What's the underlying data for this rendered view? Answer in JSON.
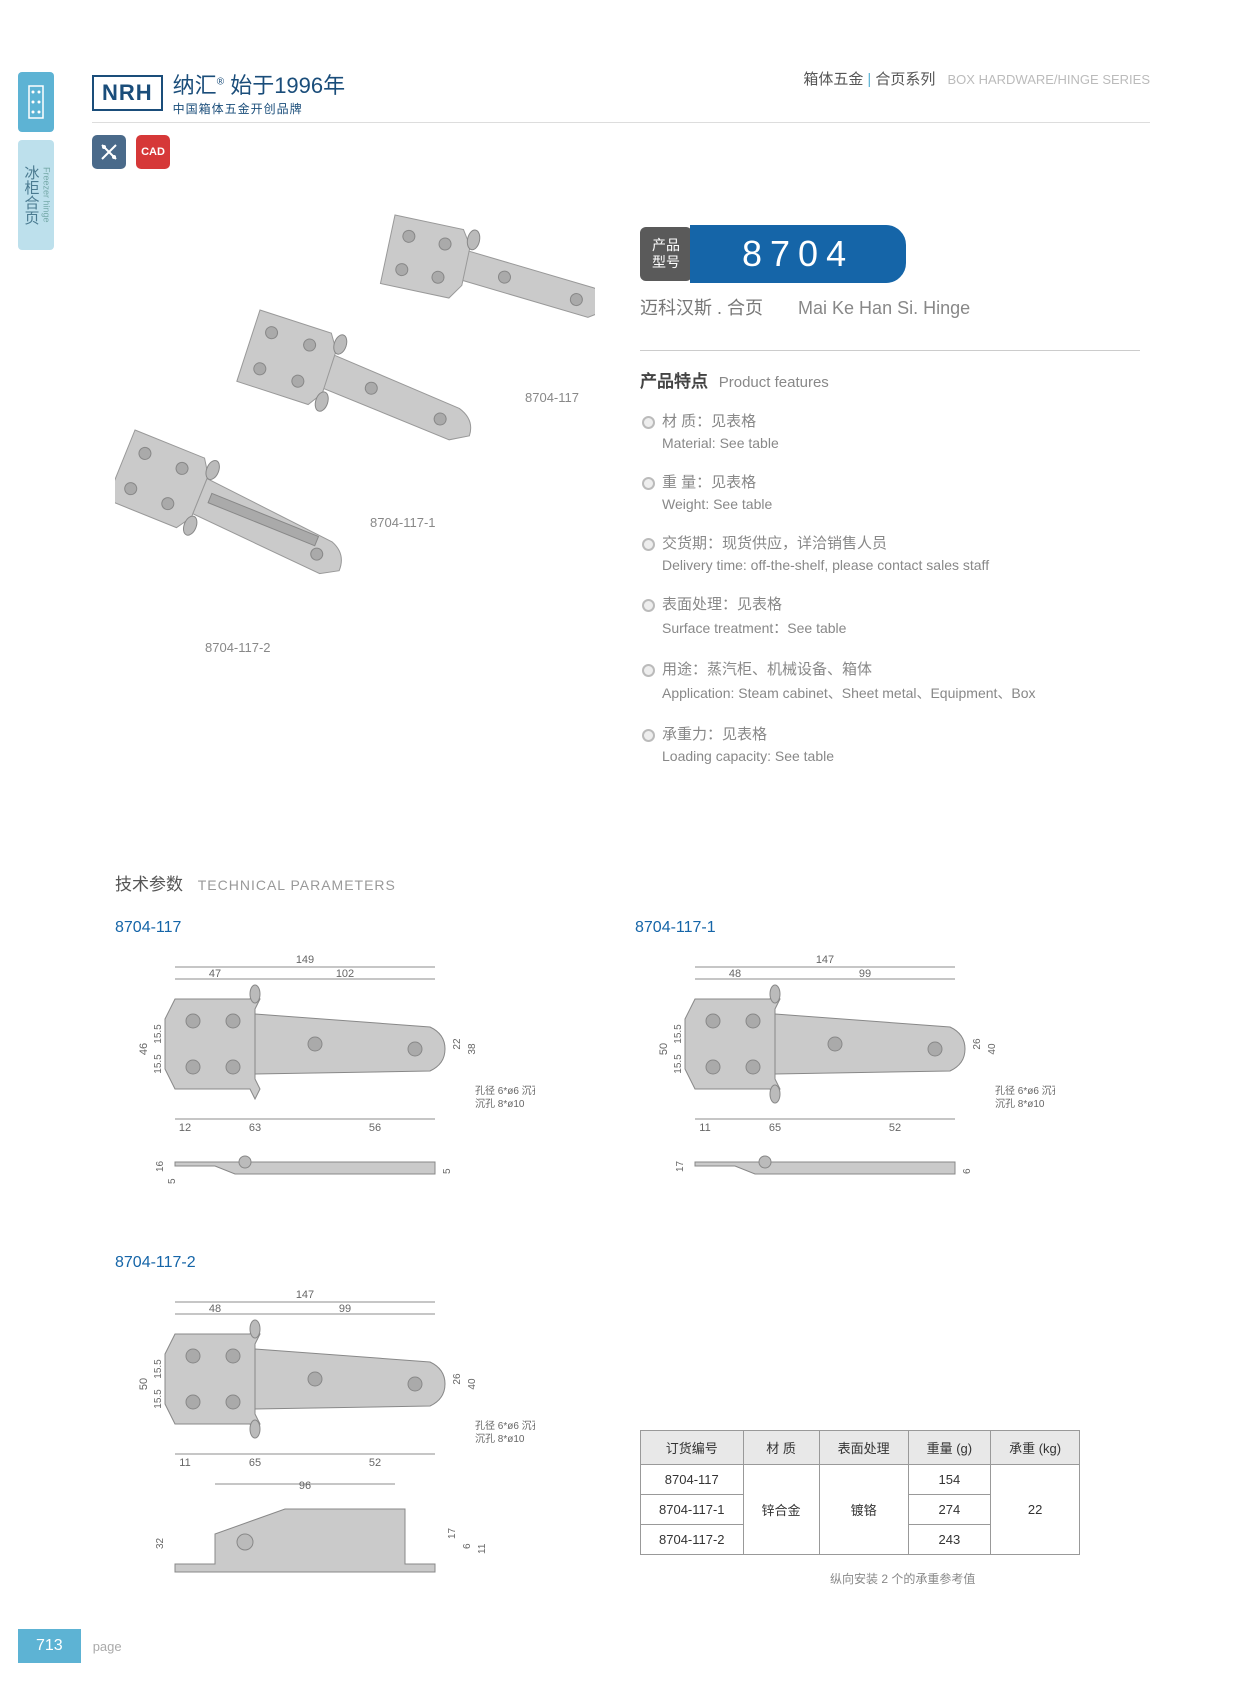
{
  "header": {
    "logo": "NRH",
    "brand_cn": "纳汇",
    "brand_suffix": "始于1996年",
    "brand_sub": "中国箱体五金开创品牌",
    "breadcrumb_cn1": "箱体五金",
    "breadcrumb_cn2": "合页系列",
    "breadcrumb_en": "BOX HARDWARE/HINGE SERIES"
  },
  "side": {
    "tab2_cn": "冰柜合页",
    "tab2_en": "Freezer hinge"
  },
  "icons": {
    "blue": "✕",
    "red": "CAD"
  },
  "product": {
    "model_label": "产品\n型号",
    "model_number": "8704",
    "name_cn": "迈科汉斯 . 合页",
    "name_en": "Mai Ke Han Si. Hinge",
    "labels": {
      "p1": "8704-117",
      "p2": "8704-117-1",
      "p3": "8704-117-2"
    }
  },
  "features": {
    "title_cn": "产品特点",
    "title_en": "Product features",
    "items": [
      {
        "cn": "材 质：见表格",
        "en": "Material: See table"
      },
      {
        "cn": "重 量：见表格",
        "en": "Weight: See table"
      },
      {
        "cn": "交货期：现货供应，详洽销售人员",
        "en": "Delivery time: off-the-shelf, please contact sales staff"
      },
      {
        "cn": "表面处理：见表格",
        "en": "Surface treatment：See table"
      },
      {
        "cn": "用途：蒸汽柜、机械设备、箱体",
        "en": "Application: Steam cabinet、Sheet metal、Equipment、Box"
      },
      {
        "cn": "承重力：见表格",
        "en": "Loading capacity: See table"
      }
    ]
  },
  "tech": {
    "title_cn": "技术参数",
    "title_en": "TECHNICAL PARAMETERS",
    "drawings": [
      {
        "label": "8704-117",
        "dims": {
          "total_w": "149",
          "w1": "47",
          "w2": "102",
          "h": "46",
          "h1": "15.5",
          "h2": "15.5",
          "d1": "12",
          "d2": "63",
          "d3": "56",
          "dh1": "22",
          "dh2": "38",
          "side_h": "16",
          "side_h1": "5",
          "side_h2": "5",
          "hole": "孔径 6*ø6\n沉孔 8*ø10"
        }
      },
      {
        "label": "8704-117-1",
        "dims": {
          "total_w": "147",
          "w1": "48",
          "w2": "99",
          "h": "50",
          "h1": "15.5",
          "h2": "15.5",
          "d1": "11",
          "d2": "65",
          "d3": "52",
          "dh1": "26",
          "dh2": "40",
          "side_h": "17",
          "side_h2": "6",
          "hole": "孔径 6*ø6\n沉孔 8*ø10"
        }
      },
      {
        "label": "8704-117-2",
        "dims": {
          "total_w": "147",
          "w1": "48",
          "w2": "99",
          "h": "50",
          "h1": "15.5",
          "h2": "15.5",
          "d1": "11",
          "d2": "65",
          "d3": "52",
          "dh1": "26",
          "dh2": "40",
          "side_w": "96",
          "side_h": "32",
          "side_h1": "17",
          "side_h2": "6",
          "side_h3": "11",
          "hole": "孔径 6*ø6\n沉孔 8*ø10"
        }
      }
    ]
  },
  "table": {
    "headers": [
      "订货编号",
      "材 质",
      "表面处理",
      "重量 (g)",
      "承重 (kg)"
    ],
    "rows": [
      [
        "8704-117",
        "",
        "",
        "154",
        ""
      ],
      [
        "8704-117-1",
        "锌合金",
        "镀铬",
        "274",
        "22"
      ],
      [
        "8704-117-2",
        "",
        "",
        "243",
        ""
      ]
    ],
    "note": "纵向安装 2 个的承重参考值"
  },
  "footer": {
    "page": "713",
    "label": "page"
  },
  "colors": {
    "brand_blue": "#1565a8",
    "accent_teal": "#5db3d4",
    "badge_gray": "#5a5a5a",
    "text_gray": "#888",
    "line_gray": "#999",
    "hinge_fill": "#c8c8c8",
    "hinge_stroke": "#888"
  }
}
